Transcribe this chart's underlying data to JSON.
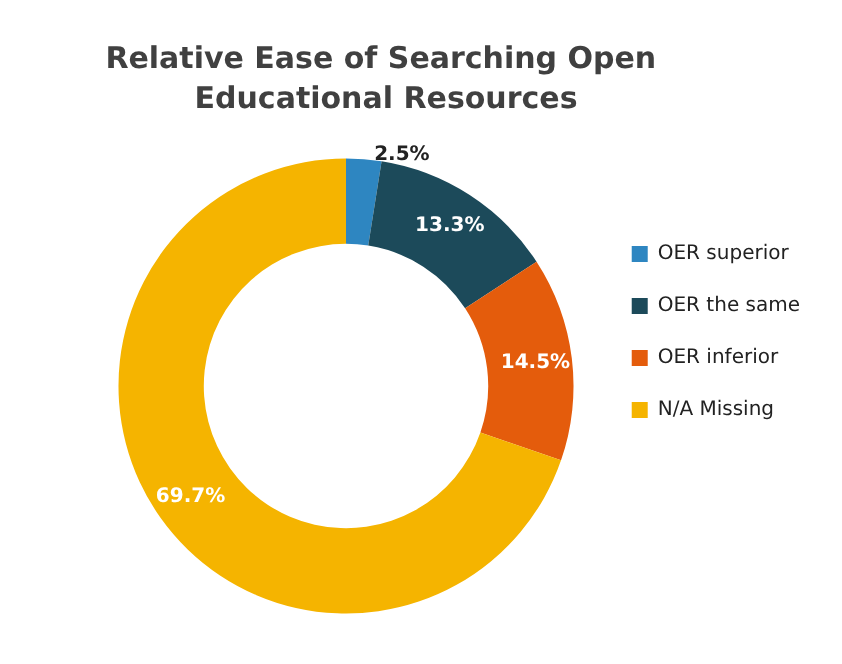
{
  "chart_data": {
    "type": "donut",
    "title": "Relative Ease of Searching Open Educational Resources",
    "categories": [
      "OER superior",
      "OER the same",
      "OER inferior",
      "N/A Missing"
    ],
    "values": [
      2.5,
      13.3,
      14.5,
      69.7
    ],
    "colors": [
      "#2e86c1",
      "#1c4a5a",
      "#e45c0c",
      "#f5b400"
    ],
    "value_labels": [
      "2.5%",
      "13.3%",
      "14.5%",
      "69.7%"
    ],
    "legend": "right"
  }
}
